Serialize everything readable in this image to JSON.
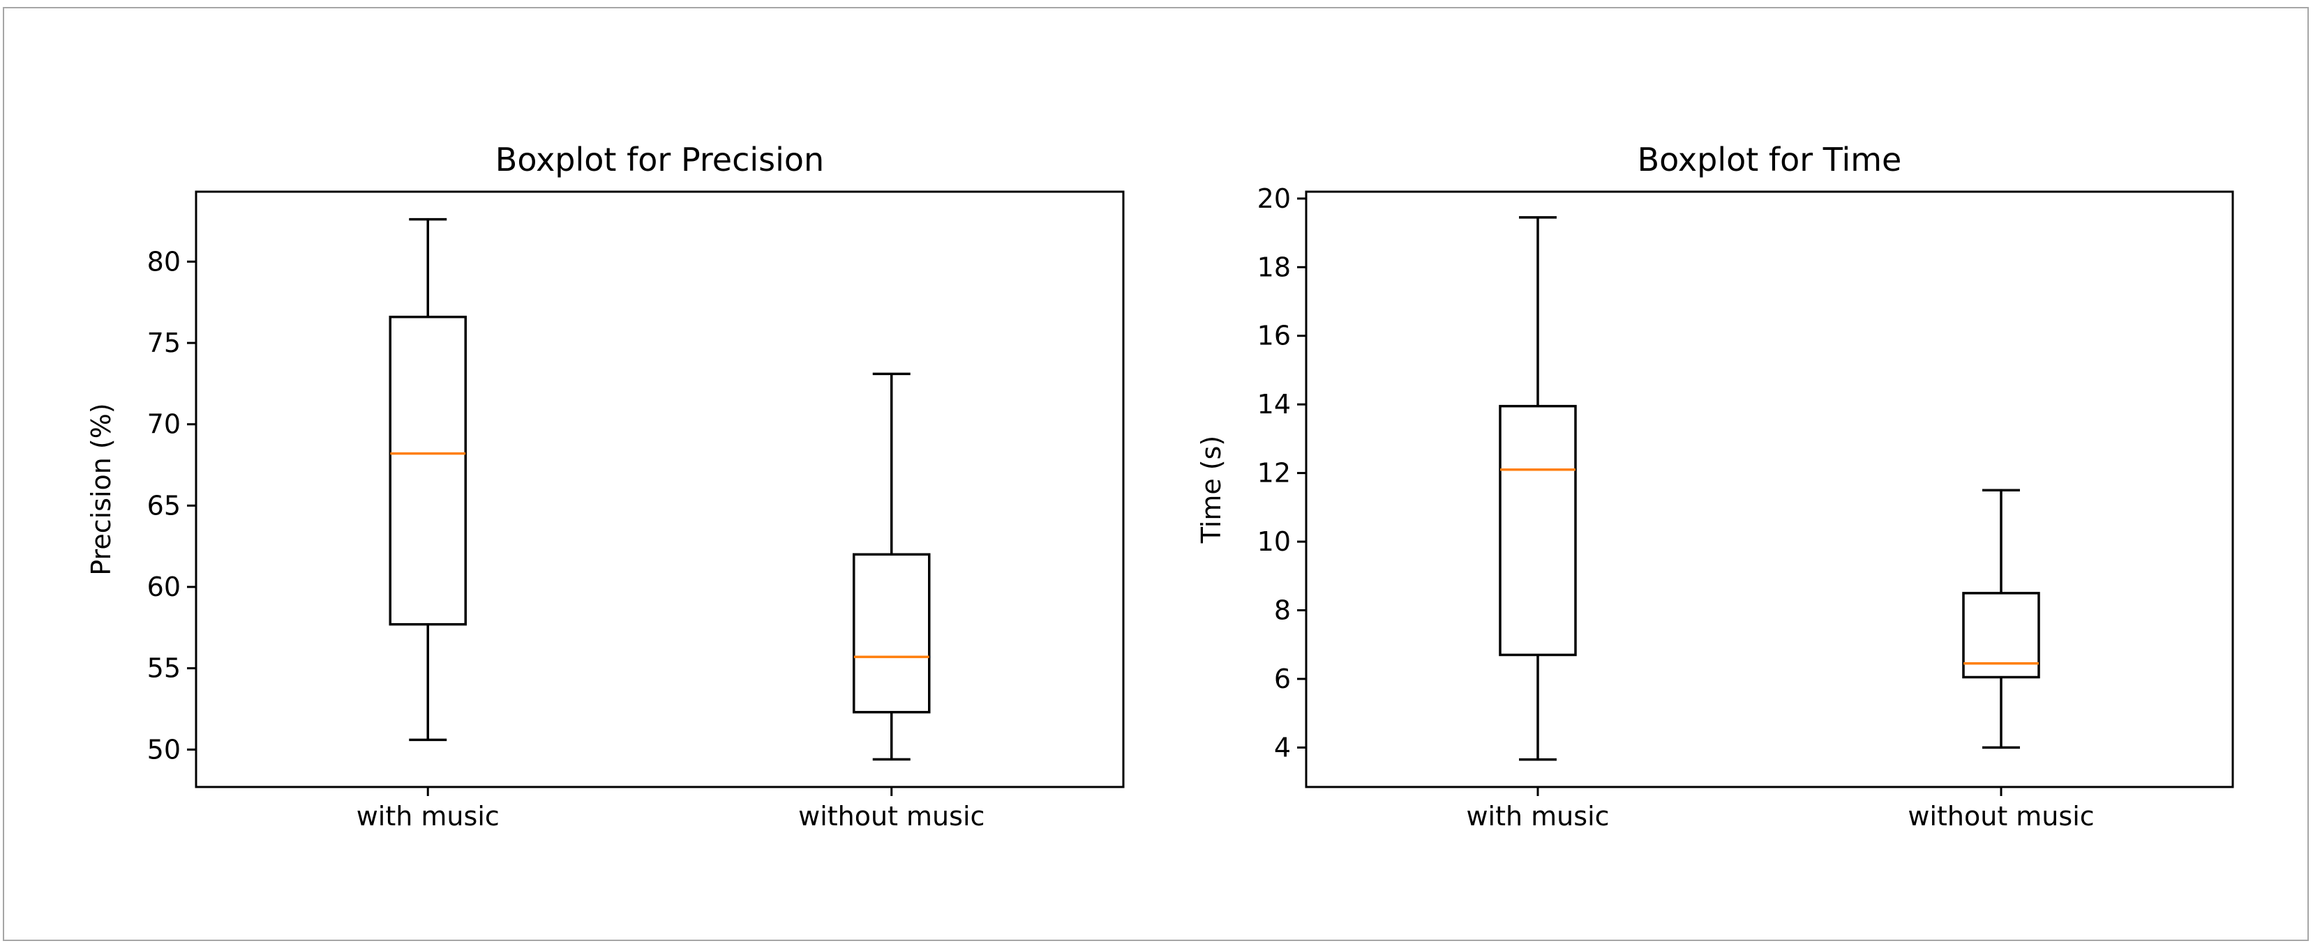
{
  "chart_data": [
    {
      "type": "boxplot",
      "title": "Boxplot for Precision",
      "xlabel": "",
      "ylabel": "Precision (%)",
      "ylim": [
        47.7,
        84.3
      ],
      "yticks": [
        50,
        55,
        60,
        65,
        70,
        75,
        80
      ],
      "categories": [
        "with music",
        "without music"
      ],
      "boxes": [
        {
          "whisker_low": 50.6,
          "q1": 57.7,
          "median": 68.2,
          "q3": 76.6,
          "whisker_high": 82.6
        },
        {
          "whisker_low": 49.4,
          "q1": 52.3,
          "median": 55.7,
          "q3": 62.0,
          "whisker_high": 73.1
        }
      ],
      "grid": false,
      "colors": {
        "box": "#000000",
        "median": "#ff7f0e"
      }
    },
    {
      "type": "boxplot",
      "title": "Boxplot for Time",
      "xlabel": "",
      "ylabel": "Time (s)",
      "ylim": [
        2.85,
        20.2
      ],
      "yticks": [
        4,
        6,
        8,
        10,
        12,
        14,
        16,
        18,
        20
      ],
      "categories": [
        "with music",
        "without music"
      ],
      "boxes": [
        {
          "whisker_low": 3.65,
          "q1": 6.7,
          "median": 12.1,
          "q3": 13.95,
          "whisker_high": 19.45
        },
        {
          "whisker_low": 4.0,
          "q1": 6.05,
          "median": 6.45,
          "q3": 8.5,
          "whisker_high": 11.5
        }
      ],
      "grid": false,
      "colors": {
        "box": "#000000",
        "median": "#ff7f0e"
      }
    }
  ]
}
